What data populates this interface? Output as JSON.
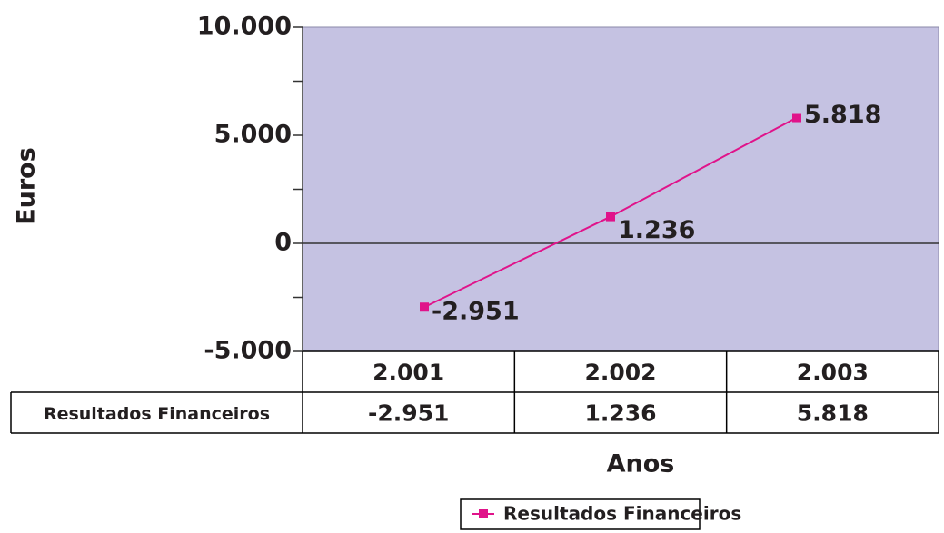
{
  "chart_data": {
    "type": "line",
    "x_label": "Anos",
    "y_label": "Euros",
    "categories": [
      "2.001",
      "2.002",
      "2.003"
    ],
    "series": [
      {
        "name": "Resultados Financeiros",
        "color": "#e0138a",
        "values": [
          -2951,
          1236,
          5818
        ],
        "value_labels": [
          "-2.951",
          "1.236",
          "5.818"
        ]
      }
    ],
    "ylim": [
      -5000,
      10000
    ],
    "yticks": [
      {
        "value": -5000,
        "label": "-5.000"
      },
      0,
      {
        "value": 5000,
        "label": "5.000"
      },
      {
        "value": 10000,
        "label": "10.000"
      }
    ],
    "minor_yticks": [
      -2500,
      2500,
      7500
    ],
    "plot_background": "#c5c2e2",
    "data_table": true,
    "legend": "bottom"
  }
}
